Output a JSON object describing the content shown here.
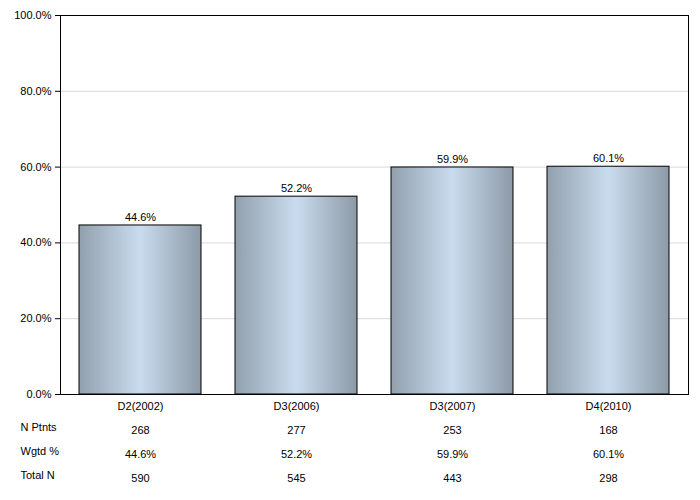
{
  "chart_data": {
    "type": "bar",
    "categories": [
      "D2(2002)",
      "D3(2006)",
      "D3(2007)",
      "D4(2010)"
    ],
    "values": [
      44.6,
      52.2,
      59.9,
      60.1
    ],
    "value_labels": [
      "44.6%",
      "52.2%",
      "59.9%",
      "60.1%"
    ],
    "data_labels": true,
    "color": "#a8b8c8",
    "ylim": [
      0,
      100
    ],
    "yticks": [
      {
        "value": 0,
        "label": "0.0%"
      },
      {
        "value": 20,
        "label": "20.0%"
      },
      {
        "value": 40,
        "label": "40.0%"
      },
      {
        "value": 60,
        "label": "60.0%"
      },
      {
        "value": 80,
        "label": "80.0%"
      },
      {
        "value": 100,
        "label": "100.0%"
      }
    ],
    "grid": true,
    "table": [
      {
        "name": "N Ptnts",
        "values": [
          268,
          277,
          253,
          168
        ]
      },
      {
        "name": "Wgtd %",
        "values": [
          "44.6%",
          "52.2%",
          "59.9%",
          "60.1%"
        ]
      },
      {
        "name": "Total N",
        "values": [
          590,
          545,
          443,
          298
        ]
      }
    ]
  }
}
